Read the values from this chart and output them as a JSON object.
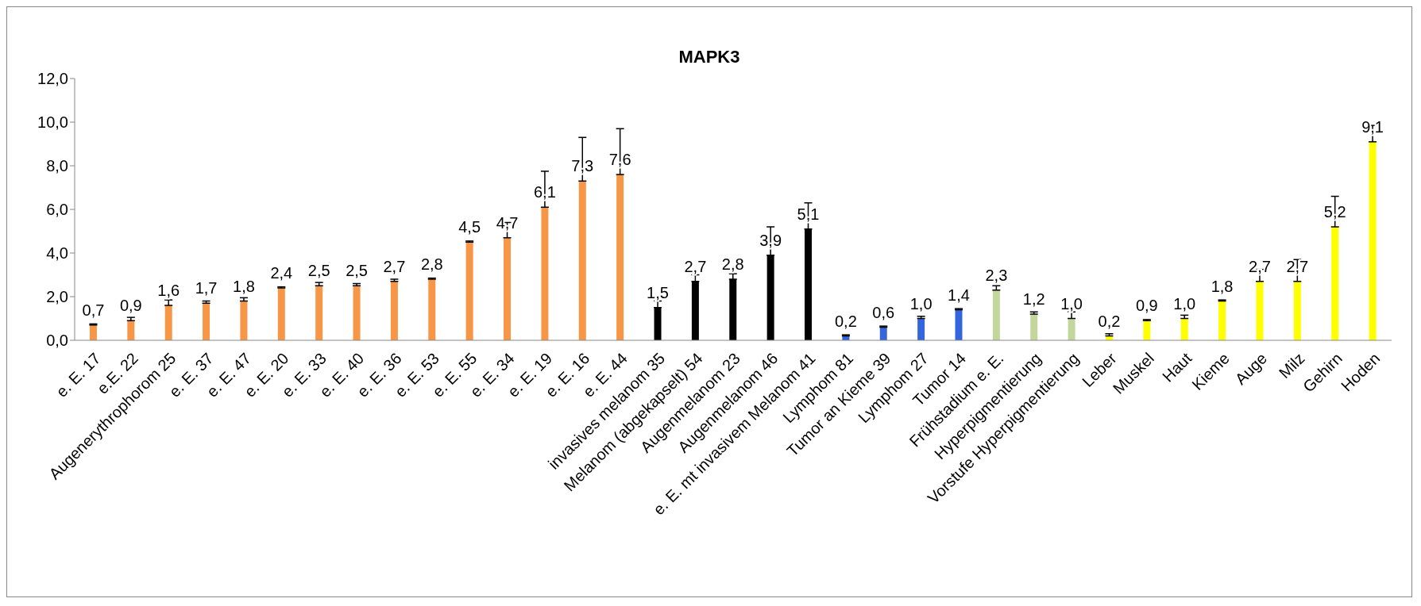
{
  "chart_data": {
    "type": "bar",
    "title": "MAPK3",
    "categories": [
      "e. E. 17",
      "e.E. 22",
      "Augenerythrophorom 25",
      "e. E. 37",
      "e. E. 47",
      "e. E. 20",
      "e. E. 33",
      "e. E. 40",
      "e. E. 36",
      "e. E. 53",
      "e. E. 55",
      "e. E. 34",
      "e. E. 19",
      "e. E. 16",
      "e. E. 44",
      "invasives melanom 35",
      "Melanom (abgekapselt) 54",
      "Augenmelanom 23",
      "Augenmelanom 46",
      "e. E. mt invasivem Melanom 41",
      "Lymphom 81",
      "Tumor an Kieme 39",
      "Lymphom 27",
      "Tumor 14",
      "Frühstadium e. E.",
      "Hyperpigmentierung",
      "Vorstufe Hyperpigmentierung",
      "Leber",
      "Muskel",
      "Haut",
      "Kieme",
      "Auge",
      "Milz",
      "Gehirn",
      "Hoden"
    ],
    "values": [
      0.7,
      0.9,
      1.6,
      1.7,
      1.8,
      2.4,
      2.5,
      2.5,
      2.7,
      2.8,
      4.5,
      4.7,
      6.1,
      7.3,
      7.6,
      1.5,
      2.7,
      2.8,
      3.9,
      5.1,
      0.2,
      0.6,
      1.0,
      1.4,
      2.3,
      1.2,
      1.0,
      0.2,
      0.9,
      1.0,
      1.8,
      2.7,
      2.7,
      5.2,
      9.1
    ],
    "errors": [
      [
        0.7,
        0.75
      ],
      [
        0.9,
        1.05
      ],
      [
        1.6,
        1.85
      ],
      [
        1.7,
        1.8
      ],
      [
        1.8,
        1.95
      ],
      [
        2.4,
        2.45
      ],
      [
        2.5,
        2.65
      ],
      [
        2.5,
        2.6
      ],
      [
        2.7,
        2.8
      ],
      [
        2.8,
        2.85
      ],
      [
        4.5,
        4.55
      ],
      [
        4.7,
        5.4
      ],
      [
        6.1,
        7.75
      ],
      [
        7.3,
        9.3
      ],
      [
        7.6,
        9.7
      ],
      [
        1.5,
        1.8
      ],
      [
        2.7,
        3.0
      ],
      [
        2.8,
        3.05
      ],
      [
        3.9,
        5.2
      ],
      [
        5.1,
        6.3
      ],
      [
        0.2,
        0.25
      ],
      [
        0.6,
        0.65
      ],
      [
        1.0,
        1.1
      ],
      [
        1.4,
        1.45
      ],
      [
        2.3,
        2.5
      ],
      [
        1.2,
        1.3
      ],
      [
        1.0,
        1.3
      ],
      [
        0.2,
        0.3
      ],
      [
        0.9,
        0.95
      ],
      [
        1.0,
        1.15
      ],
      [
        1.8,
        1.85
      ],
      [
        2.7,
        3.25
      ],
      [
        2.7,
        3.7
      ],
      [
        5.2,
        6.6
      ],
      [
        9.1,
        9.85
      ]
    ],
    "colors": [
      "#f79646",
      "#f79646",
      "#f79646",
      "#f79646",
      "#f79646",
      "#f79646",
      "#f79646",
      "#f79646",
      "#f79646",
      "#f79646",
      "#f79646",
      "#f79646",
      "#f79646",
      "#f79646",
      "#f79646",
      "#000000",
      "#000000",
      "#000000",
      "#000000",
      "#000000",
      "#3366dd",
      "#3366dd",
      "#3366dd",
      "#3366dd",
      "#c3d69b",
      "#c3d69b",
      "#c3d69b",
      "#ffff00",
      "#ffff00",
      "#ffff00",
      "#ffff00",
      "#ffff00",
      "#ffff00",
      "#ffff00",
      "#ffff00"
    ],
    "ylim": [
      0,
      12
    ],
    "yticks": [
      {
        "value": 0,
        "label": "0,0"
      },
      {
        "value": 2,
        "label": "2,0"
      },
      {
        "value": 4,
        "label": "4,0"
      },
      {
        "value": 6,
        "label": "6,0"
      },
      {
        "value": 8,
        "label": "8,0"
      },
      {
        "value": 10,
        "label": "10,0"
      },
      {
        "value": 12,
        "label": "12,0"
      }
    ],
    "value_labels": [
      "0,7",
      "0,9",
      "1,6",
      "1,7",
      "1,8",
      "2,4",
      "2,5",
      "2,5",
      "2,7",
      "2,8",
      "4,5",
      "4,7",
      "6,1",
      "7,3",
      "7,6",
      "1,5",
      "2,7",
      "2,8",
      "3,9",
      "5,1",
      "0,2",
      "0,6",
      "1,0",
      "1,4",
      "2,3",
      "1,2",
      "1,0",
      "0,2",
      "0,9",
      "1,0",
      "1,8",
      "2,7",
      "2,7",
      "5,2",
      "9,1"
    ],
    "grid": false,
    "legend": false
  }
}
